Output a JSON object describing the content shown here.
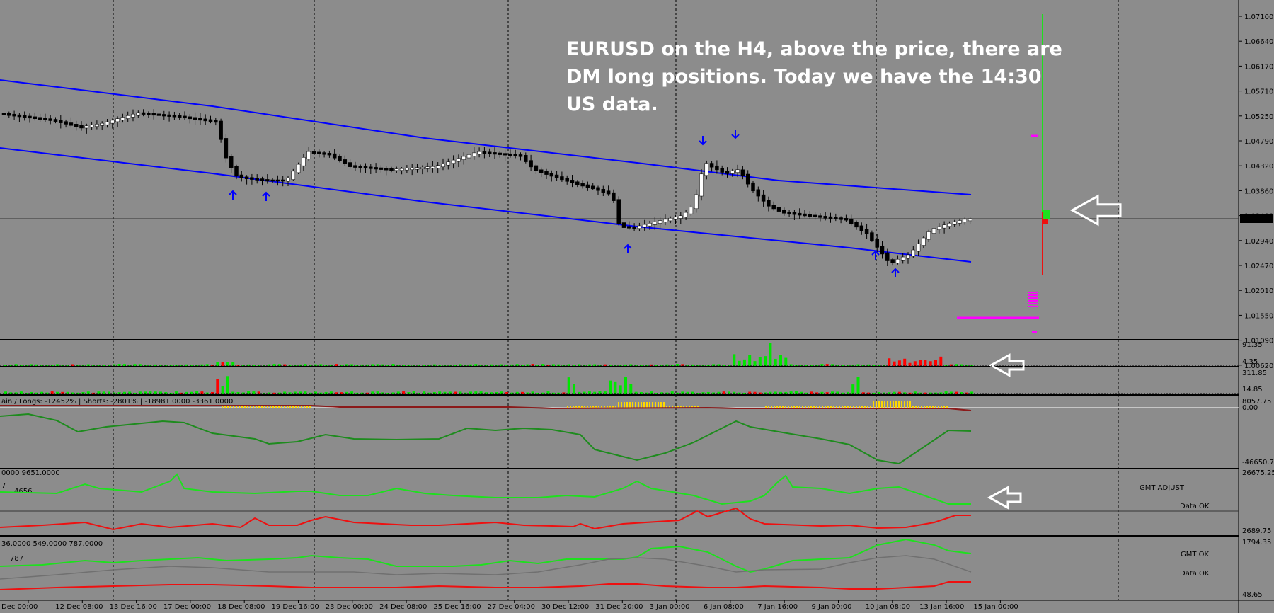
{
  "symbol": "EURUSD",
  "timeframe": "H4",
  "annotation": {
    "lines": [
      "EURUSD on the H4, above the price, there are",
      "DM long positions. Today we have the 14:30",
      "US data."
    ]
  },
  "price_axis": {
    "ticks": [
      "1.07100",
      "1.06640",
      "1.06170",
      "1.05710",
      "1.05250",
      "1.04790",
      "1.04320",
      "1.03860",
      "1.03400",
      "1.02940",
      "1.02470",
      "1.02010",
      "1.01550",
      "1.01090",
      "1.00620"
    ],
    "current": "1.03015"
  },
  "time_axis": {
    "labels": [
      "Dec 00:00",
      "12 Dec 08:00",
      "13 Dec 16:00",
      "17 Dec 00:00",
      "18 Dec 08:00",
      "19 Dec 16:00",
      "23 Dec 00:00",
      "24 Dec 08:00",
      "25 Dec 16:00",
      "27 Dec 04:00",
      "30 Dec 12:00",
      "31 Dec 20:00",
      "3 Jan 00:00",
      "6 Jan 08:00",
      "7 Jan 16:00",
      "9 Jan 00:00",
      "10 Jan 08:00",
      "13 Jan 16:00",
      "15 Jan 00:00"
    ]
  },
  "pane1": {
    "scale_top": "91.35",
    "scale_bottom": "4.35"
  },
  "pane2": {
    "scale_top": "311.85",
    "scale_bottom": "14.85"
  },
  "pane3": {
    "header": "ain  /  Longs: -12452%  |  Shorts: -2801%  |   -18981.0000  -3361.0000",
    "scale_top": "8057.75",
    "scale_zero": "0.00",
    "scale_bottom": "-46650.75"
  },
  "pane4": {
    "header": "0000  9651.0000",
    "header_prefix": "7",
    "big_value": "4656",
    "scale_top": "26675.25",
    "scale_bottom": "2689.75",
    "status_title": "GMT ADJUST",
    "status_text": "Data OK"
  },
  "pane5": {
    "header": "36.0000  549.0000  787.0000",
    "big_value": "787",
    "scale_top": "1794.35",
    "scale_bottom": "48.65",
    "status_1": "GMT OK",
    "status_2": "Data OK"
  },
  "colors": {
    "background": "#8c8c8c",
    "bull_candle": "#ffffff",
    "bear_candle": "#000000",
    "channel": "#0000ff",
    "arrow_up": "#0000ff",
    "arrow_down": "#0000ff",
    "volume_up": "#00e600",
    "volume_down": "#ff0000",
    "line_green": "#1ee01e",
    "line_red": "#ee1010",
    "line_gray": "#707070",
    "profile_magenta": "#ff00ff",
    "annotation_arrow": "#ffffff"
  }
}
